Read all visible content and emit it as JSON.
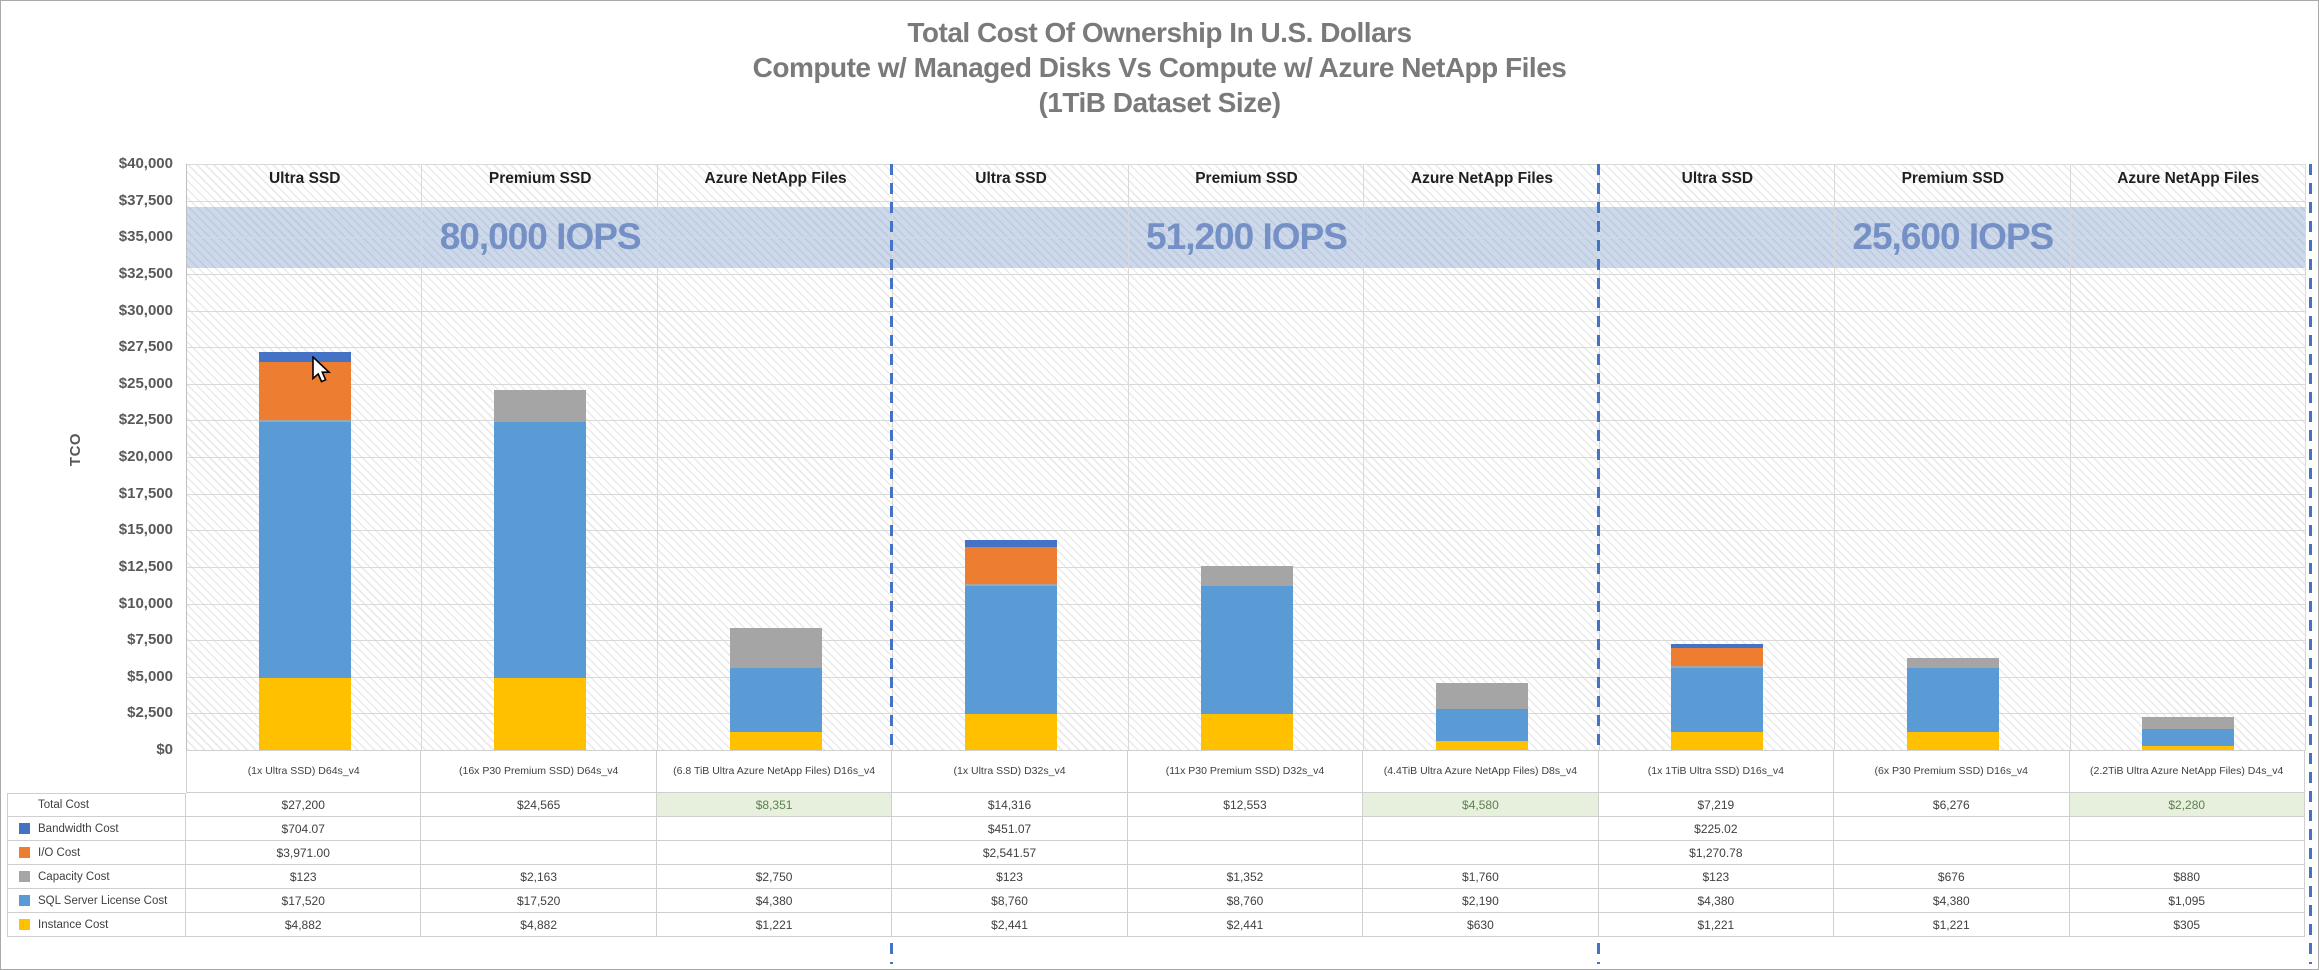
{
  "title": {
    "line1": "Total Cost Of Ownership In U.S. Dollars",
    "line2": "Compute w/ Managed Disks Vs Compute w/ Azure NetApp Files",
    "line3": "(1TiB Dataset Size)"
  },
  "y_axis": {
    "title": "TCO",
    "min": 0,
    "max": 40000,
    "step": 2500,
    "ticks": [
      "$0",
      "$2,500",
      "$5,000",
      "$7,500",
      "$10,000",
      "$12,500",
      "$15,000",
      "$17,500",
      "$20,000",
      "$22,500",
      "$25,000",
      "$27,500",
      "$30,000",
      "$32,500",
      "$35,000",
      "$37,500",
      "$40,000"
    ]
  },
  "column_headers": [
    "Ultra SSD",
    "Premium SSD",
    "Azure NetApp Files"
  ],
  "groups": [
    {
      "iops_label": "80,000 IOPS"
    },
    {
      "iops_label": "51,200 IOPS"
    },
    {
      "iops_label": "25,600 IOPS"
    }
  ],
  "iops_band": {
    "from": 32900,
    "to": 37100
  },
  "chart_data": {
    "type": "bar",
    "stacked": true,
    "title": "Total Cost Of Ownership In U.S. Dollars — Compute w/ Managed Disks Vs Compute w/ Azure NetApp Files (1TiB Dataset Size)",
    "ylabel": "TCO",
    "ylim": [
      0,
      40000
    ],
    "grid": true,
    "legend_position": "table-left",
    "group_labels": [
      "80,000 IOPS",
      "51,200 IOPS",
      "25,600 IOPS"
    ],
    "categories": [
      "(1x Ultra SSD) D64s_v4",
      "(16x P30 Premium SSD) D64s_v4",
      "(6.8 TiB Ultra Azure NetApp Files) D16s_v4",
      "(1x Ultra SSD) D32s_v4",
      "(11x P30 Premium SSD) D32s_v4",
      "(4.4TiB Ultra Azure NetApp Files) D8s_v4",
      "(1x 1TiB Ultra SSD) D16s_v4",
      "(6x P30 Premium SSD) D16s_v4",
      "(2.2TiB Ultra Azure NetApp Files) D4s_v4"
    ],
    "series": [
      {
        "name": "Instance Cost",
        "color": "#FFC000",
        "values": [
          4882,
          4882,
          1221,
          2441,
          2441,
          630,
          1221,
          1221,
          305
        ]
      },
      {
        "name": "SQL Server License Cost",
        "color": "#5B9BD5",
        "values": [
          17520,
          17520,
          4380,
          8760,
          8760,
          2190,
          4380,
          4380,
          1095
        ]
      },
      {
        "name": "Capacity Cost",
        "color": "#A5A5A5",
        "values": [
          123,
          2163,
          2750,
          123,
          1352,
          1760,
          123,
          676,
          880
        ]
      },
      {
        "name": "I/O Cost",
        "color": "#ED7D31",
        "values": [
          3971.0,
          0,
          0,
          2541.57,
          0,
          0,
          1270.78,
          0,
          0
        ]
      },
      {
        "name": "Bandwidth Cost",
        "color": "#4472C4",
        "values": [
          704.07,
          0,
          0,
          451.07,
          0,
          0,
          225.02,
          0,
          0
        ]
      }
    ],
    "totals": [
      27200,
      24565,
      8351,
      14316,
      12553,
      4580,
      7219,
      6276,
      2280
    ]
  },
  "table": {
    "rows": [
      {
        "label": "Total Cost",
        "swatch": null,
        "highlight_cols": [
          2,
          5,
          8
        ],
        "values": [
          "$27,200",
          "$24,565",
          "$8,351",
          "$14,316",
          "$12,553",
          "$4,580",
          "$7,219",
          "$6,276",
          "$2,280"
        ]
      },
      {
        "label": "Bandwidth Cost",
        "swatch": "#4472C4",
        "values": [
          "$704.07",
          "",
          "",
          "$451.07",
          "",
          "",
          "$225.02",
          "",
          ""
        ]
      },
      {
        "label": "I/O Cost",
        "swatch": "#ED7D31",
        "values": [
          "$3,971.00",
          "",
          "",
          "$2,541.57",
          "",
          "",
          "$1,270.78",
          "",
          ""
        ]
      },
      {
        "label": "Capacity Cost",
        "swatch": "#A5A5A5",
        "values": [
          "$123",
          "$2,163",
          "$2,750",
          "$123",
          "$1,352",
          "$1,760",
          "$123",
          "$676",
          "$880"
        ]
      },
      {
        "label": "SQL Server License Cost",
        "swatch": "#5B9BD5",
        "values": [
          "$17,520",
          "$17,520",
          "$4,380",
          "$8,760",
          "$8,760",
          "$2,190",
          "$4,380",
          "$4,380",
          "$1,095"
        ]
      },
      {
        "label": "Instance Cost",
        "swatch": "#FFC000",
        "values": [
          "$4,882",
          "$4,882",
          "$1,221",
          "$2,441",
          "$2,441",
          "$630",
          "$1,221",
          "$1,221",
          "$305"
        ]
      }
    ]
  },
  "colors": {
    "bandwidth_cost": "#4472C4",
    "io_cost": "#ED7D31",
    "capacity_cost": "#A5A5A5",
    "sql_server_license_cost": "#5B9BD5",
    "instance_cost": "#FFC000",
    "iops_text": "#7490C4",
    "iops_band_fill": "#CCD8EB",
    "group_divider": "#4472C4",
    "highlight_cell_bg": "#E7EFDD",
    "highlight_cell_text": "#5E8052",
    "title_text": "#7A7A7A",
    "axis_text": "#595959",
    "gridline": "#D9D9D9"
  }
}
